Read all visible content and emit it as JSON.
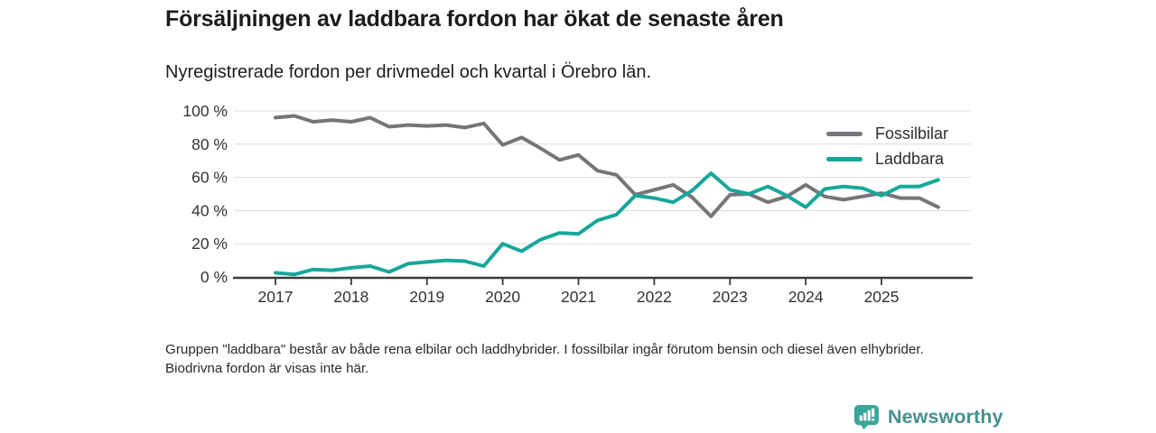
{
  "header": {
    "title": "Försäljningen av laddbara fordon har ökat de senaste åren",
    "subtitle": "Nyregistrerade fordon per drivmedel och kvartal i Örebro län."
  },
  "chart_data": {
    "type": "line",
    "x": [
      "2017 Q1",
      "2017 Q2",
      "2017 Q3",
      "2017 Q4",
      "2018 Q1",
      "2018 Q2",
      "2018 Q3",
      "2018 Q4",
      "2019 Q1",
      "2019 Q2",
      "2019 Q3",
      "2019 Q4",
      "2020 Q1",
      "2020 Q2",
      "2020 Q3",
      "2020 Q4",
      "2021 Q1",
      "2021 Q2",
      "2021 Q3",
      "2021 Q4",
      "2022 Q1",
      "2022 Q2",
      "2022 Q3",
      "2022 Q4",
      "2023 Q1",
      "2023 Q2",
      "2023 Q3",
      "2023 Q4",
      "2024 Q1",
      "2024 Q2",
      "2024 Q3",
      "2024 Q4",
      "2025 Q1",
      "2025 Q2",
      "2025 Q3",
      "2025 Q4"
    ],
    "series": [
      {
        "name": "Fossilbilar",
        "color": "#75757a",
        "values": [
          96,
          97,
          93.5,
          94.5,
          93.5,
          96,
          90.5,
          91.5,
          91,
          91.5,
          90,
          92.5,
          79.5,
          84,
          77.5,
          70.5,
          73.5,
          64,
          61.5,
          49.5,
          52.5,
          55.5,
          48,
          36.5,
          49.5,
          50,
          45,
          48.5,
          55.5,
          48.5,
          46.5,
          48.5,
          50.5,
          47.5,
          47.5,
          42
        ]
      },
      {
        "name": "Laddbara",
        "color": "#17a79a",
        "values": [
          2.5,
          1.5,
          4.5,
          4,
          5.5,
          6.5,
          3,
          8,
          9,
          10,
          9.5,
          6.5,
          20,
          15.5,
          22.5,
          26.5,
          26,
          34,
          37.5,
          49,
          47.5,
          45,
          52,
          62.5,
          52.5,
          50,
          54.5,
          49,
          42,
          53,
          54.5,
          53.5,
          49,
          54.5,
          54.5,
          58.5
        ]
      }
    ],
    "x_ticks": [
      "2017",
      "2018",
      "2019",
      "2020",
      "2021",
      "2022",
      "2023",
      "2024",
      "2025"
    ],
    "y_ticks": [
      "0 %",
      "20 %",
      "40 %",
      "60 %",
      "80 %",
      "100 %"
    ],
    "y_tick_values": [
      0,
      20,
      40,
      60,
      80,
      100
    ],
    "ylim": [
      0,
      100
    ],
    "grid": "horizontal",
    "legend_position": "top-right",
    "unit": "%"
  },
  "footer": {
    "note": "Gruppen \"laddbara\" består av både rena elbilar och laddhybrider. I fossilbilar ingår förutom bensin och diesel även elhybrider. Biodrivna fordon är visas inte här."
  },
  "branding": {
    "logo_text": "Newsworthy",
    "logo_icon": "bar-chart-badge-icon",
    "logo_badge_color": "#3aa79b",
    "logo_text_color": "#45918c"
  },
  "colors": {
    "title_text": "#1c1c1e",
    "axis_text": "#333333",
    "gridline": "#dadada",
    "axis_line": "#3a3a3a"
  }
}
